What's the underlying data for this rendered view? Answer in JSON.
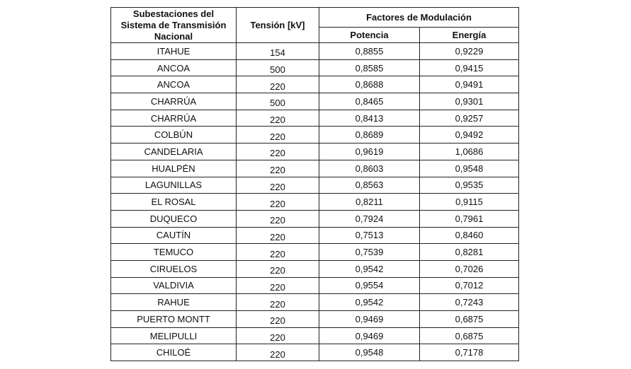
{
  "table": {
    "header": {
      "substation": "Subestaciones del Sistema de Transmisión Nacional",
      "voltage": "Tensión [kV]",
      "factors": "Factores de Modulación",
      "power": "Potencia",
      "energy": "Energía"
    },
    "rows": [
      [
        "ITAHUE",
        "154",
        "0,8855",
        "0,9229"
      ],
      [
        "ANCOA",
        "500",
        "0,8585",
        "0,9415"
      ],
      [
        "ANCOA",
        "220",
        "0,8688",
        "0,9491"
      ],
      [
        "CHARRÚA",
        "500",
        "0,8465",
        "0,9301"
      ],
      [
        "CHARRÚA",
        "220",
        "0,8413",
        "0,9257"
      ],
      [
        "COLBÚN",
        "220",
        "0,8689",
        "0,9492"
      ],
      [
        "CANDELARIA",
        "220",
        "0,9619",
        "1,0686"
      ],
      [
        "HUALPÉN",
        "220",
        "0,8603",
        "0,9548"
      ],
      [
        "LAGUNILLAS",
        "220",
        "0,8563",
        "0,9535"
      ],
      [
        "EL ROSAL",
        "220",
        "0,8211",
        "0,9115"
      ],
      [
        "DUQUECO",
        "220",
        "0,7924",
        "0,7961"
      ],
      [
        "CAUTÍN",
        "220",
        "0,7513",
        "0,8460"
      ],
      [
        "TEMUCO",
        "220",
        "0,7539",
        "0,8281"
      ],
      [
        "CIRUELOS",
        "220",
        "0,9542",
        "0,7026"
      ],
      [
        "VALDIVIA",
        "220",
        "0,9554",
        "0,7012"
      ],
      [
        "RAHUE",
        "220",
        "0,9542",
        "0,7243"
      ],
      [
        "PUERTO MONTT",
        "220",
        "0,9469",
        "0,6875"
      ],
      [
        "MELIPULLI",
        "220",
        "0,9469",
        "0,6875"
      ],
      [
        "CHILOÉ",
        "220",
        "0,9548",
        "0,7178"
      ]
    ]
  }
}
